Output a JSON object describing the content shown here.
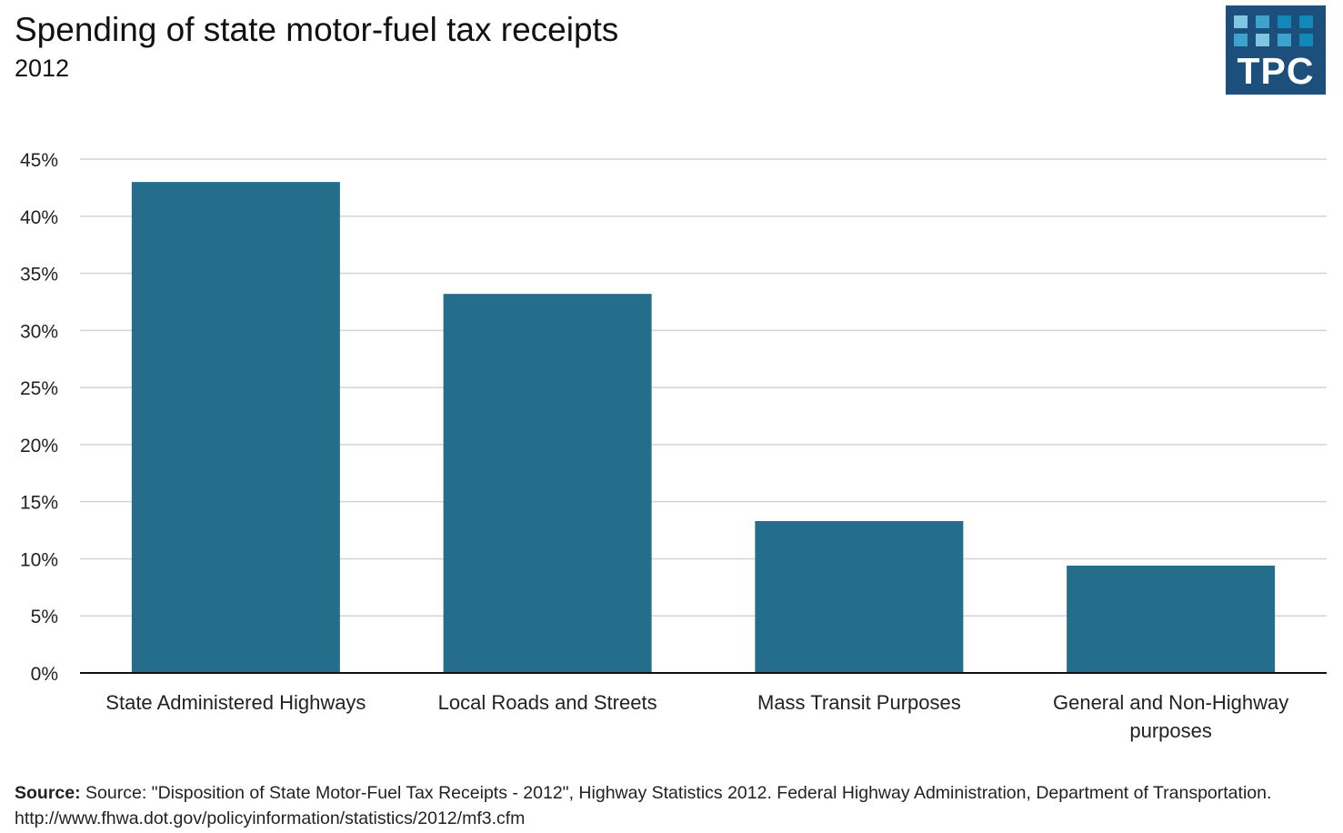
{
  "chart_data": {
    "type": "bar",
    "title": "Spending of state motor-fuel tax receipts",
    "subtitle": "2012",
    "categories": [
      "State Administered Highways",
      "Local Roads and Streets",
      "Mass Transit Purposes",
      "General and Non-Highway purposes"
    ],
    "category_lines": [
      [
        "State Administered Highways"
      ],
      [
        "Local Roads and Streets"
      ],
      [
        "Mass Transit Purposes"
      ],
      [
        "General and Non-Highway",
        "purposes"
      ]
    ],
    "values": [
      43.0,
      33.2,
      13.3,
      9.4
    ],
    "ylim": [
      0,
      45
    ],
    "yticks": [
      0,
      5,
      10,
      15,
      20,
      25,
      30,
      35,
      40,
      45
    ],
    "ytick_labels": [
      "0%",
      "5%",
      "10%",
      "15%",
      "20%",
      "25%",
      "30%",
      "35%",
      "40%",
      "45%"
    ],
    "xlabel": "",
    "ylabel": "",
    "grid": true,
    "bar_color": "#246e8c"
  },
  "logo": {
    "text": "TPC",
    "bg_color": "#1c4f7c",
    "square_colors": [
      "#7fc6e0",
      "#3ba3cc",
      "#1188b8"
    ]
  },
  "source": {
    "label": "Source:",
    "text": "Source: \"Disposition of State Motor-Fuel Tax Receipts - 2012\", Highway Statistics 2012. Federal Highway Administration, Department of Transportation. http://www.fhwa.dot.gov/policyinformation/statistics/2012/mf3.cfm"
  }
}
